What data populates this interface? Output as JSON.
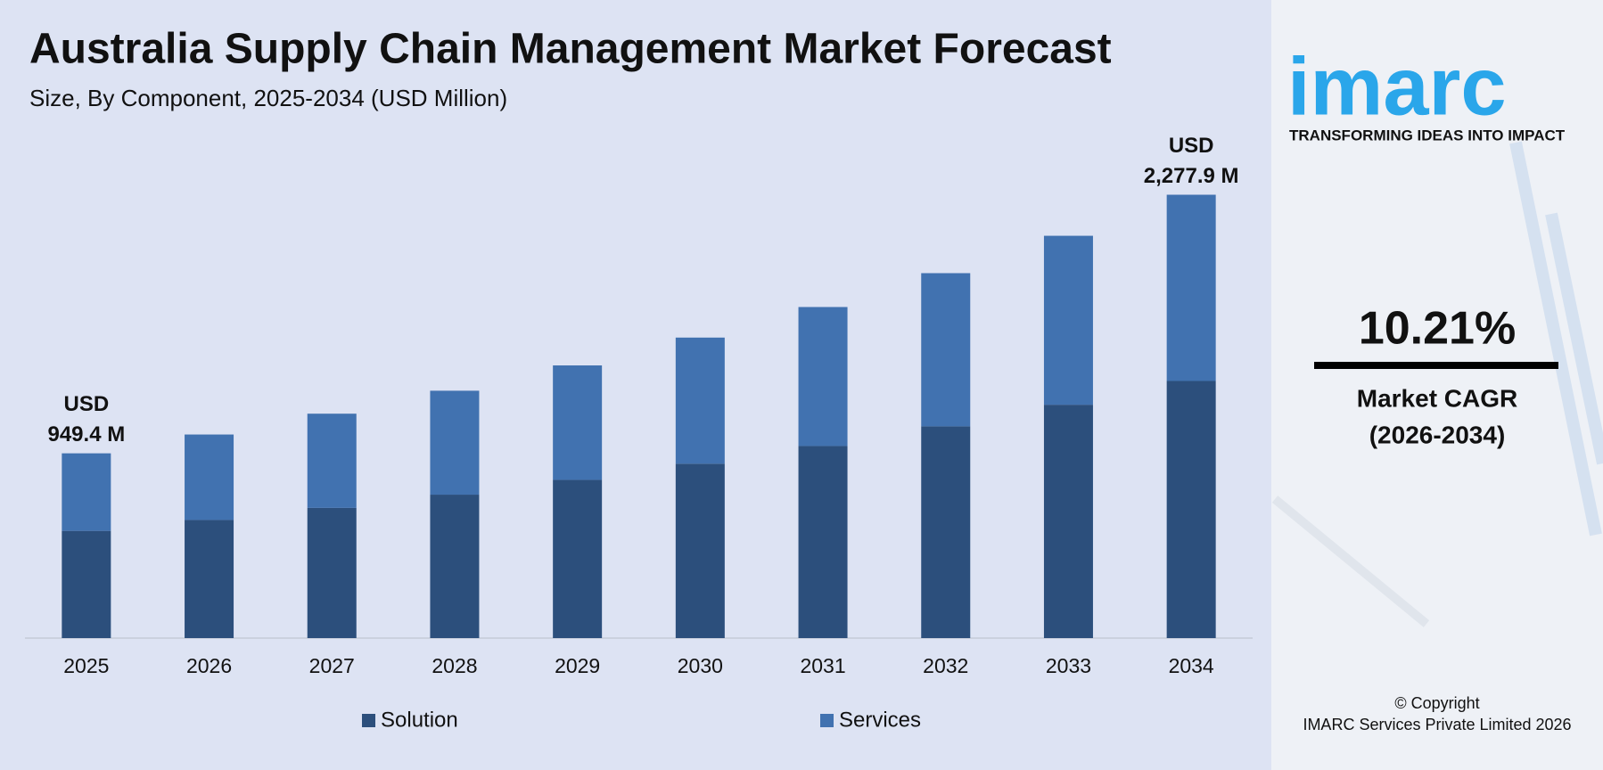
{
  "chart_data": {
    "type": "stacked-bar",
    "title": "Australia Supply Chain Management Market Forecast",
    "subtitle": "Size, By Component, 2025-2034 (USD Million)",
    "categories": [
      "2025",
      "2026",
      "2027",
      "2028",
      "2029",
      "2030",
      "2031",
      "2032",
      "2033",
      "2034"
    ],
    "series": [
      {
        "name": "Solution",
        "color": "#2c4f7c",
        "values": [
          551,
          607,
          669,
          737,
          813,
          896,
          987,
          1088,
          1199,
          1321
        ]
      },
      {
        "name": "Services",
        "color": "#4172b0",
        "values": [
          398.4,
          439,
          484,
          534,
          588,
          648,
          714,
          787,
          868,
          956.9
        ]
      }
    ],
    "ylim": [
      0,
      2500
    ],
    "start_label": [
      "USD",
      "949.4 M"
    ],
    "end_label": [
      "USD",
      "2,277.9 M"
    ]
  },
  "sidebar": {
    "logo": "imarc",
    "tagline": "TRANSFORMING IDEAS INTO IMPACT",
    "cagr": "10.21%",
    "cagr_label": "Market CAGR",
    "cagr_period": "(2026-2034)",
    "copyright": [
      "© Copyright",
      "IMARC Services Private Limited 2026"
    ]
  }
}
